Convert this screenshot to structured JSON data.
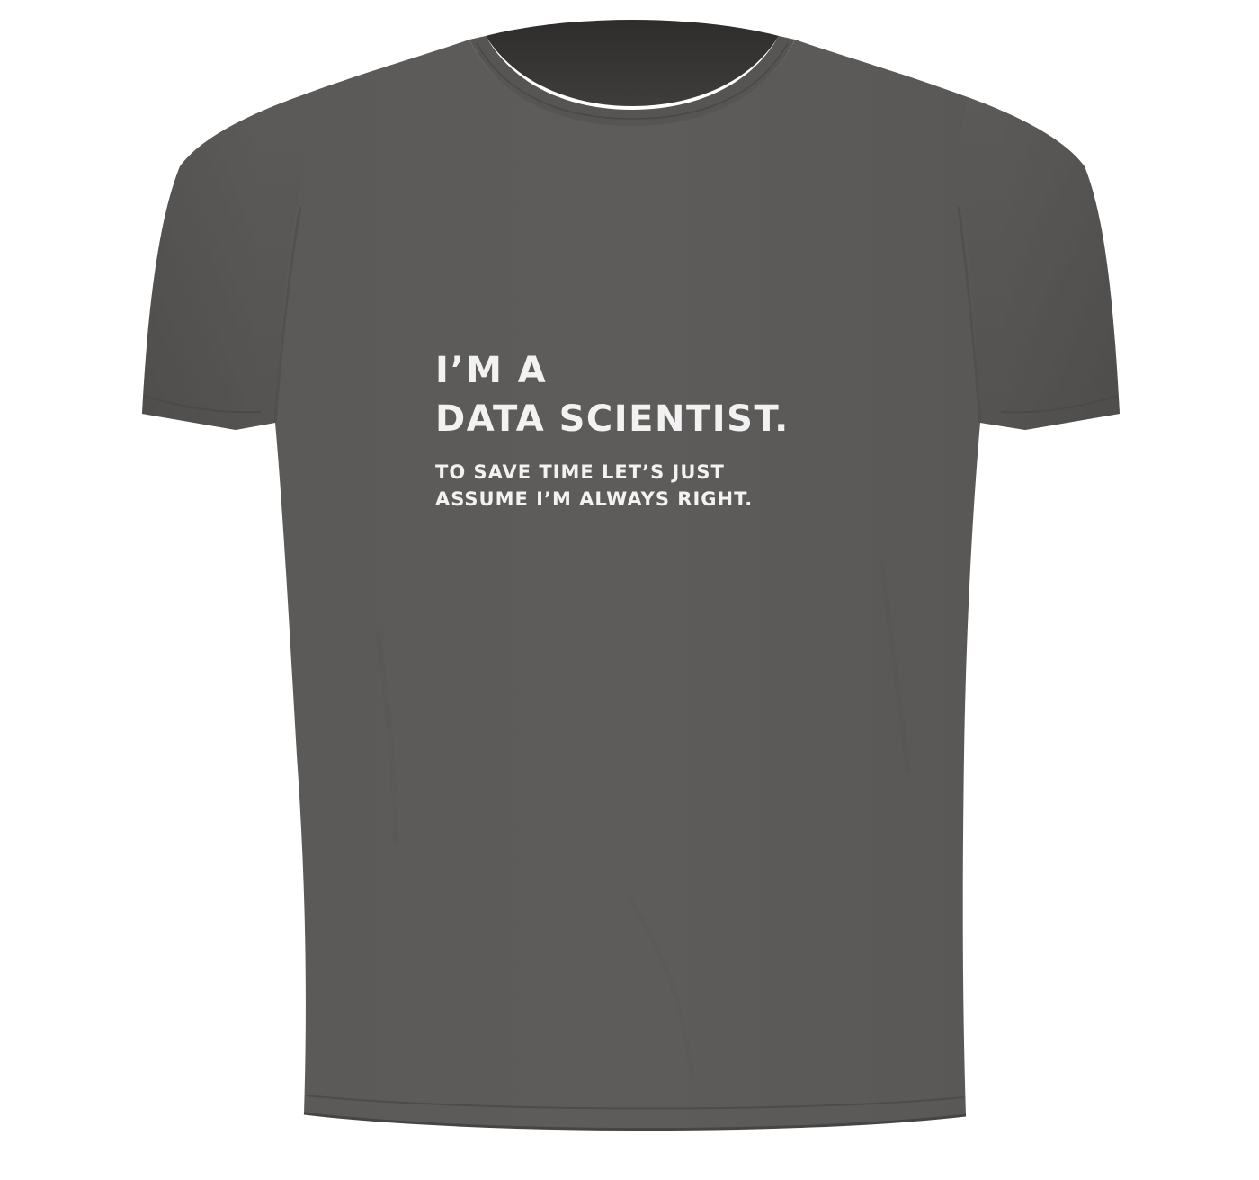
{
  "product": {
    "garment": "t-shirt",
    "shirt_color": "#5b5957",
    "print_color": "#f2f2f2",
    "print_text": {
      "line1": "I’M A",
      "line2": "DATA SCIENTIST.",
      "line3": "TO SAVE TIME LET’S JUST",
      "line4": "ASSUME I’M ALWAYS RIGHT."
    }
  }
}
